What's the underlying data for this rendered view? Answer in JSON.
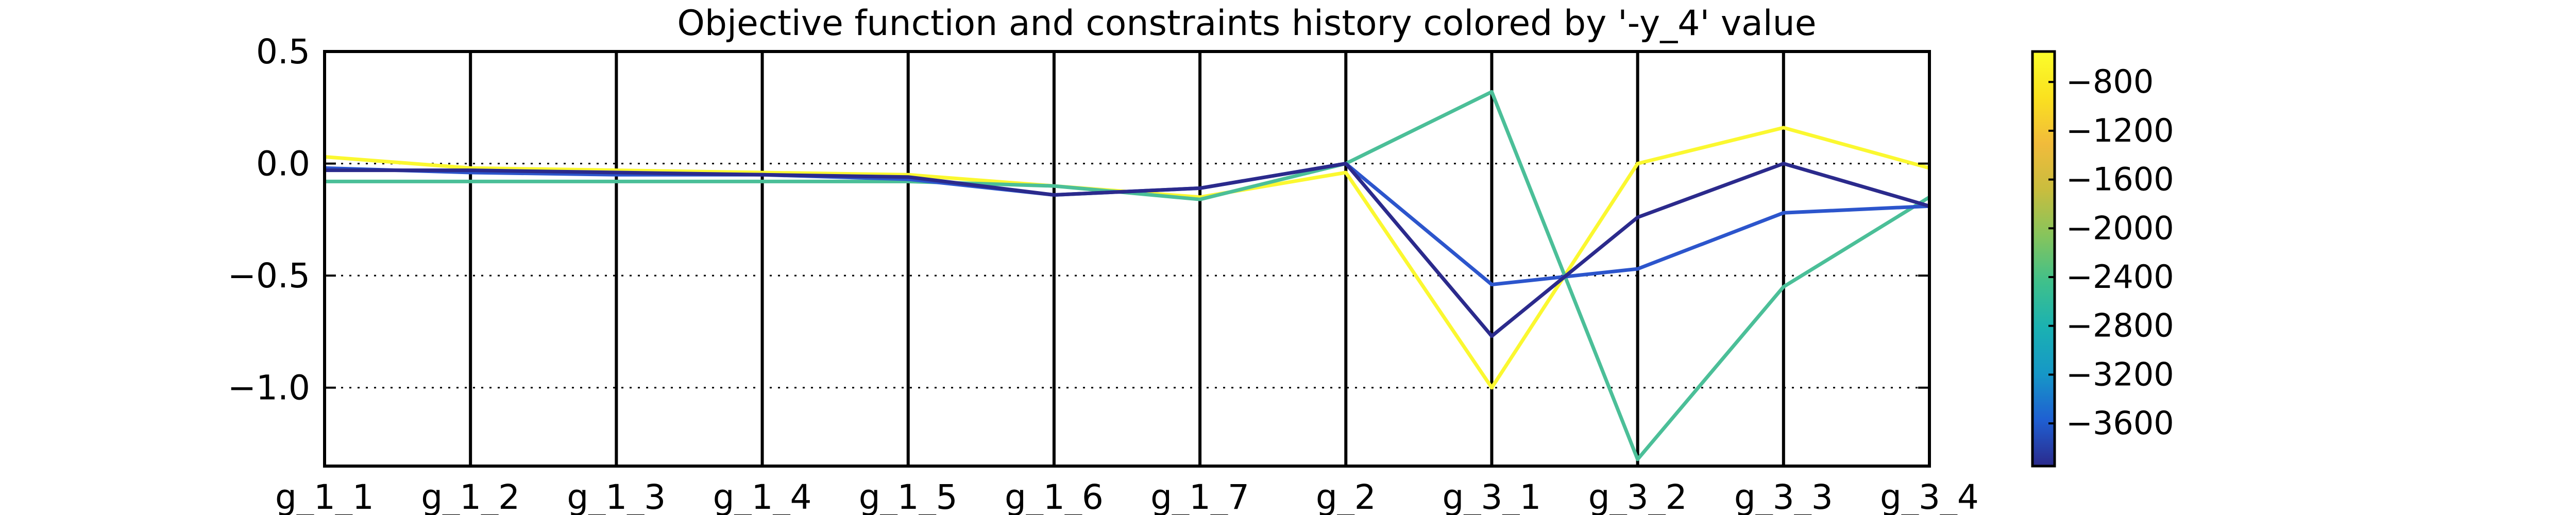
{
  "chart_data": {
    "type": "line",
    "subtype": "parallel-coordinates",
    "title": "Objective function and constraints history colored by '-y_4' value",
    "categories": [
      "g_1_1",
      "g_1_2",
      "g_1_3",
      "g_1_4",
      "g_1_5",
      "g_1_6",
      "g_1_7",
      "g_2",
      "g_3_1",
      "g_3_2",
      "g_3_3",
      "g_3_4"
    ],
    "ylim": [
      -1.35,
      0.5
    ],
    "yticks": [
      0.5,
      0.0,
      -0.5,
      -1.0
    ],
    "ytick_labels": [
      "0.5",
      "0.0",
      "−0.5",
      "−1.0"
    ],
    "grid": "horizontal dotted at 0.0, -0.5, -1.0",
    "colorbar": {
      "label": "-y_4",
      "range": [
        -3950,
        -550
      ],
      "ticks": [
        -800,
        -1200,
        -1600,
        -2000,
        -2400,
        -2800,
        -3200,
        -3600
      ],
      "tick_labels": [
        "−800",
        "−1200",
        "−1600",
        "−2000",
        "−2400",
        "−2800",
        "−3200",
        "−3600"
      ],
      "colormap": "viridis-like",
      "stops": [
        "#2b2a8c",
        "#1f5fd2",
        "#1697c7",
        "#1ab1b2",
        "#3fc08b",
        "#86c45c",
        "#c9bd3e",
        "#f1bb3b",
        "#fae11f",
        "#fbfd2b"
      ]
    },
    "series": [
      {
        "color": "#fbf830",
        "values": [
          0.03,
          -0.02,
          -0.03,
          -0.04,
          -0.05,
          -0.1,
          -0.15,
          -0.04,
          -1.0,
          0.0,
          0.16,
          -0.02
        ]
      },
      {
        "color": "#4bbf98",
        "values": [
          -0.08,
          -0.08,
          -0.08,
          -0.08,
          -0.08,
          -0.1,
          -0.16,
          0.0,
          0.32,
          -1.32,
          -0.55,
          -0.15
        ]
      },
      {
        "color": "#2c55cc",
        "values": [
          -0.02,
          -0.04,
          -0.05,
          -0.05,
          -0.07,
          -0.14,
          -0.11,
          0.0,
          -0.54,
          -0.47,
          -0.22,
          -0.19
        ]
      },
      {
        "color": "#2b2a8c",
        "values": [
          -0.03,
          -0.03,
          -0.04,
          -0.05,
          -0.06,
          -0.14,
          -0.11,
          0.0,
          -0.77,
          -0.24,
          0.0,
          -0.19
        ]
      }
    ]
  }
}
